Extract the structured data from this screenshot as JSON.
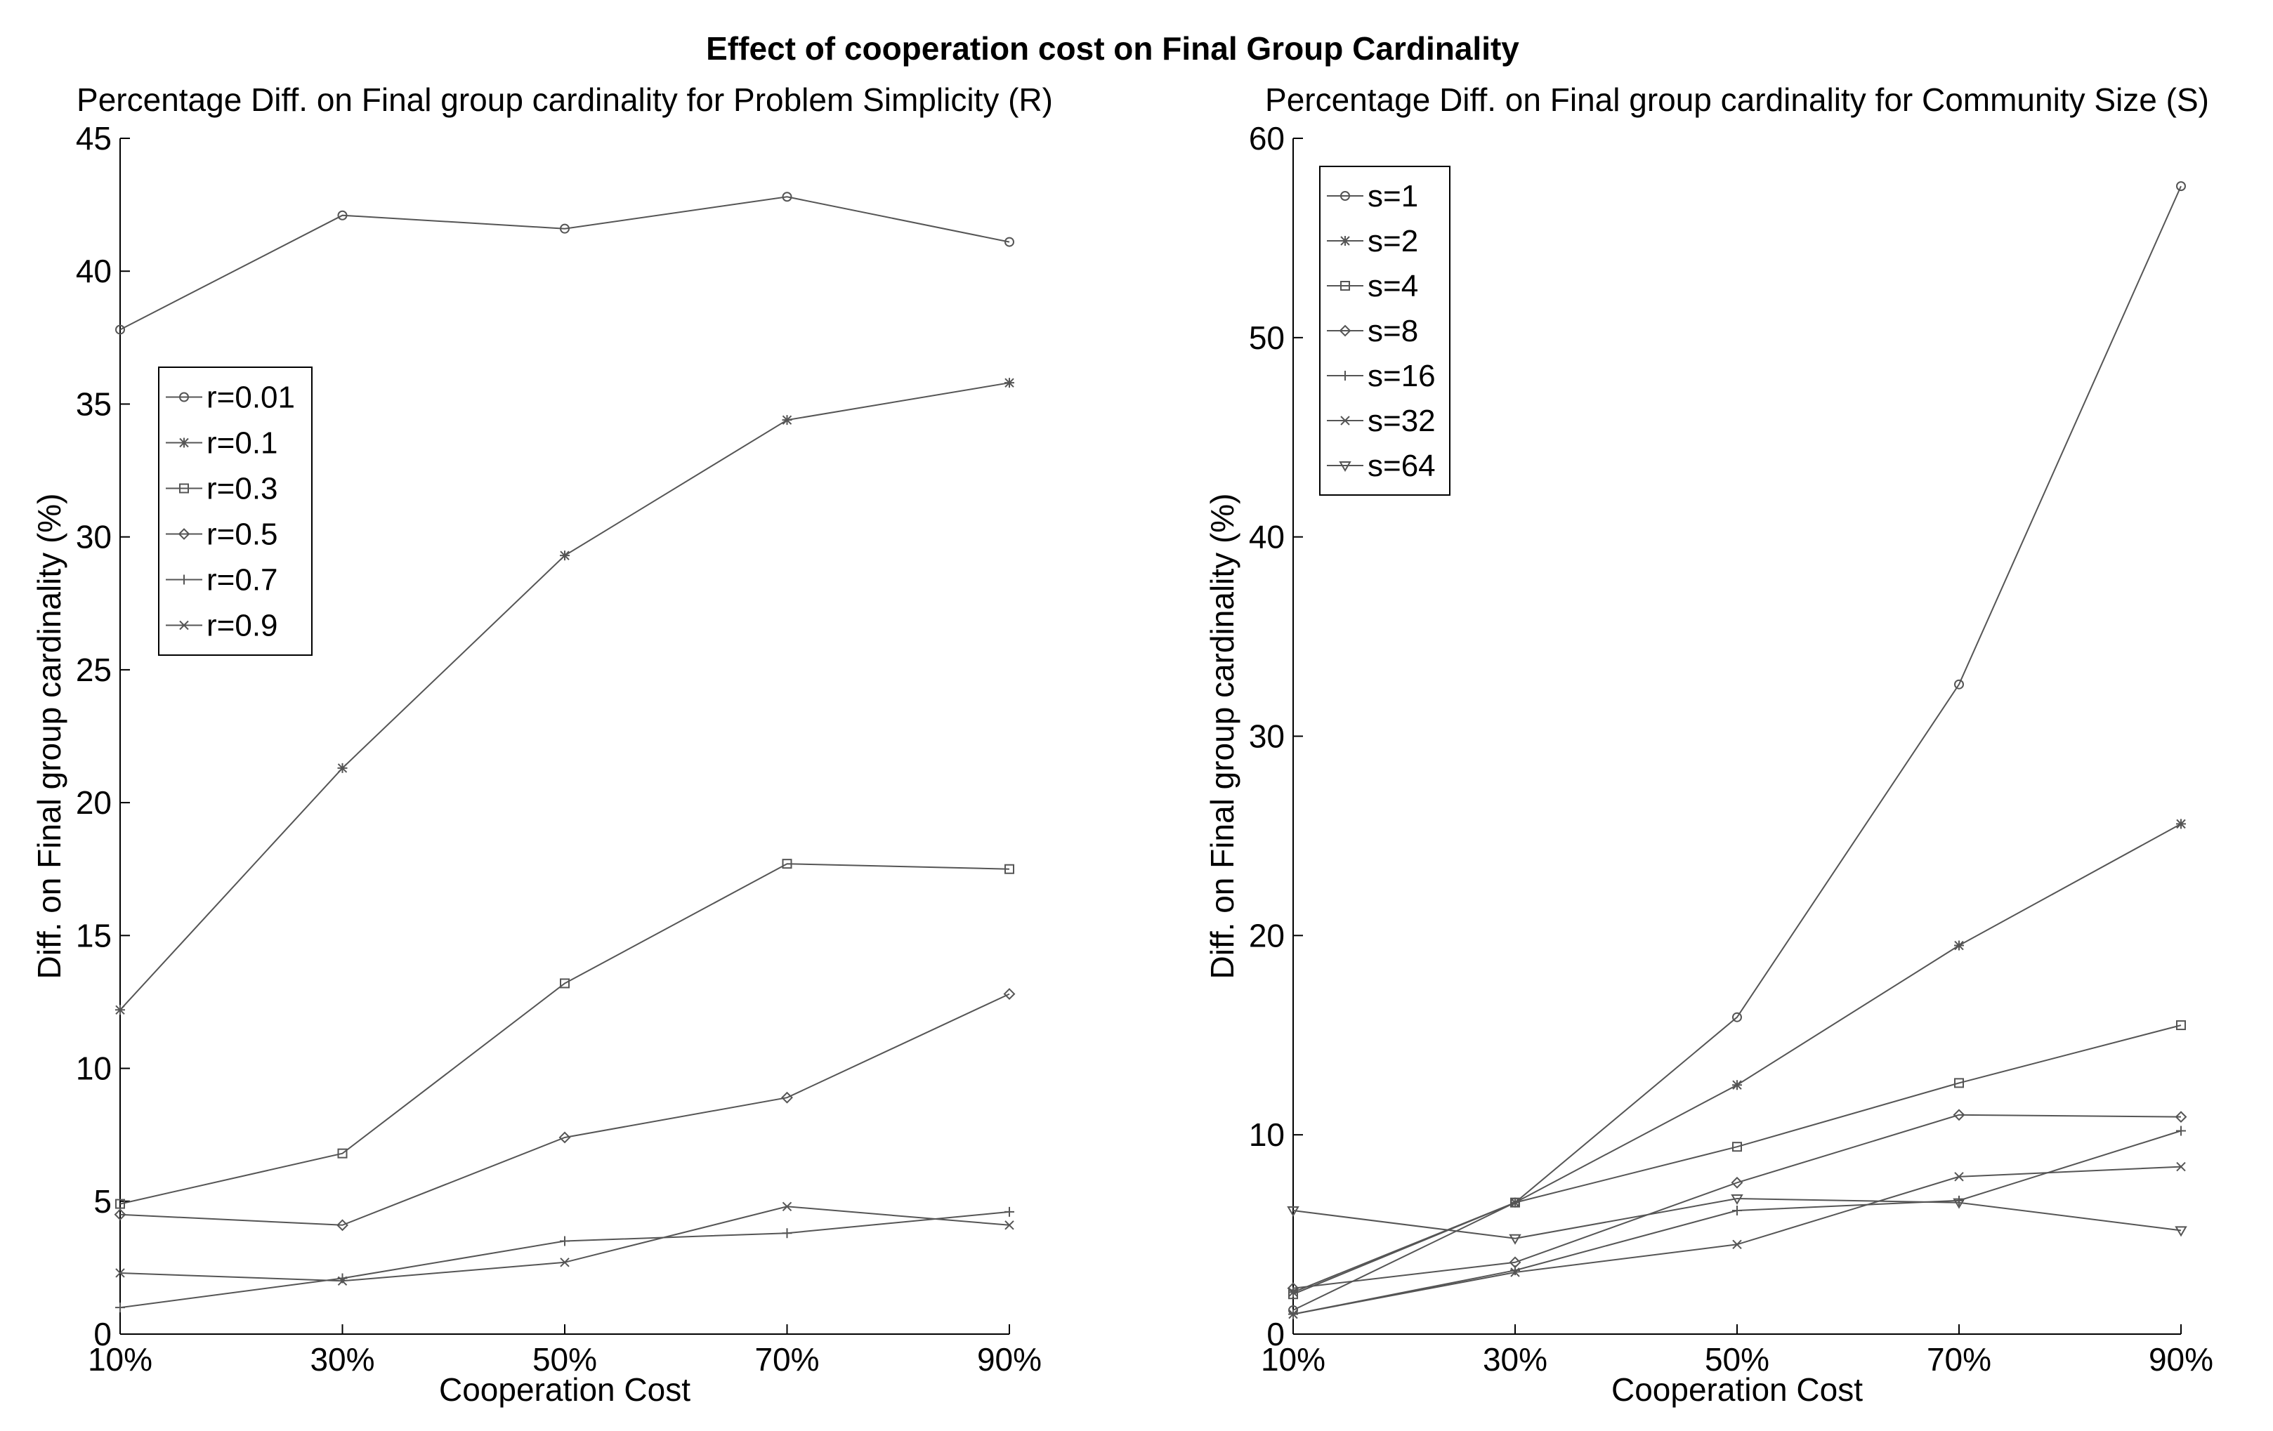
{
  "figure_title": "Effect of cooperation cost on Final Group Cardinality",
  "chart_data": [
    {
      "type": "line",
      "title": "Percentage Diff. on Final group cardinality for Problem Simplicity (R)",
      "xlabel": "Cooperation Cost",
      "ylabel": "Diff. on Final group cardinality (%)",
      "categories": [
        "10%",
        "30%",
        "50%",
        "70%",
        "90%"
      ],
      "ylim": [
        0,
        45
      ],
      "yticks": [
        0,
        5,
        10,
        15,
        20,
        25,
        30,
        35,
        40,
        45
      ],
      "grid": false,
      "legend_position": "upper-left",
      "series": [
        {
          "name": "r=0.01",
          "marker": "circle",
          "values": [
            37.8,
            42.1,
            41.6,
            42.8,
            41.1
          ]
        },
        {
          "name": "r=0.1",
          "marker": "asterisk",
          "values": [
            12.2,
            21.3,
            29.3,
            34.4,
            35.8
          ]
        },
        {
          "name": "r=0.3",
          "marker": "square",
          "values": [
            4.9,
            6.8,
            13.2,
            17.7,
            17.5
          ]
        },
        {
          "name": "r=0.5",
          "marker": "diamond",
          "values": [
            4.5,
            4.1,
            7.4,
            8.9,
            12.8
          ]
        },
        {
          "name": "r=0.7",
          "marker": "plus",
          "values": [
            1.0,
            2.1,
            3.5,
            3.8,
            4.6
          ]
        },
        {
          "name": "r=0.9",
          "marker": "x",
          "values": [
            2.3,
            2.0,
            2.7,
            4.8,
            4.1
          ]
        }
      ]
    },
    {
      "type": "line",
      "title": "Percentage Diff. on Final group cardinality for Community Size (S)",
      "xlabel": "Cooperation Cost",
      "ylabel": "Diff. on Final group cardinality (%)",
      "categories": [
        "10%",
        "30%",
        "50%",
        "70%",
        "90%"
      ],
      "ylim": [
        0,
        60
      ],
      "yticks": [
        0,
        10,
        20,
        30,
        40,
        50,
        60
      ],
      "grid": false,
      "legend_position": "upper-left",
      "series": [
        {
          "name": "s=1",
          "marker": "circle",
          "values": [
            1.2,
            6.6,
            15.9,
            32.6,
            57.6
          ]
        },
        {
          "name": "s=2",
          "marker": "asterisk",
          "values": [
            2.1,
            6.6,
            12.5,
            19.5,
            25.6
          ]
        },
        {
          "name": "s=4",
          "marker": "square",
          "values": [
            2.0,
            6.6,
            9.4,
            12.6,
            15.5
          ]
        },
        {
          "name": "s=8",
          "marker": "diamond",
          "values": [
            2.3,
            3.6,
            7.6,
            11.0,
            10.9
          ]
        },
        {
          "name": "s=16",
          "marker": "plus",
          "values": [
            1.0,
            3.2,
            6.2,
            6.7,
            10.2
          ]
        },
        {
          "name": "s=32",
          "marker": "x",
          "values": [
            1.0,
            3.1,
            4.5,
            7.9,
            8.4
          ]
        },
        {
          "name": "s=64",
          "marker": "triangle-down",
          "values": [
            6.2,
            4.8,
            6.8,
            6.6,
            5.2
          ]
        }
      ]
    }
  ]
}
